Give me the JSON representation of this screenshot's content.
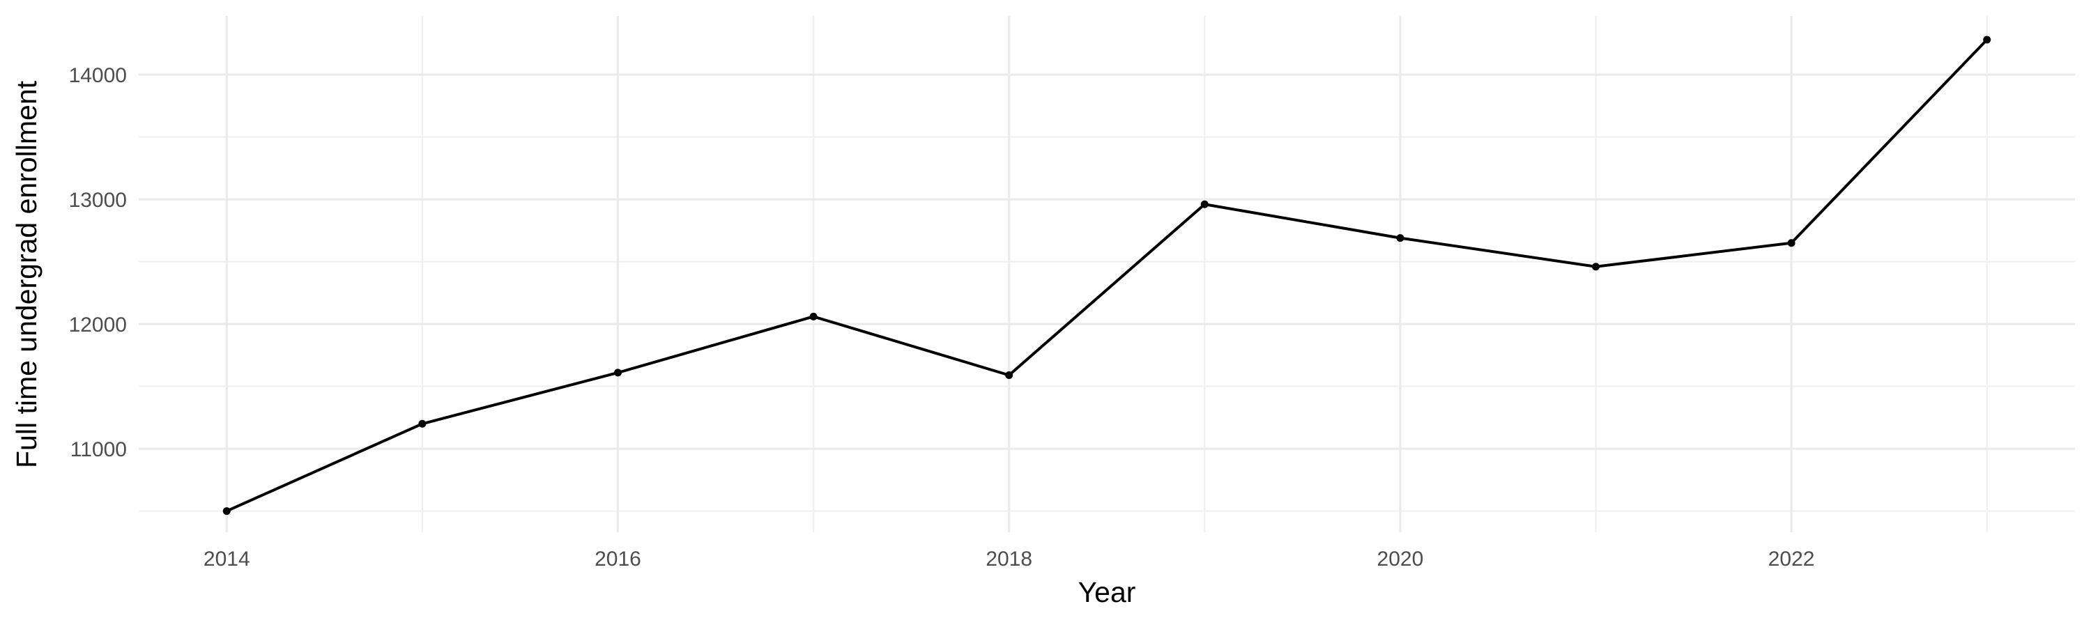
{
  "figure": {
    "background_color": "#ffffff"
  },
  "chart_data": {
    "type": "line",
    "title": "",
    "xlabel": "Year",
    "ylabel": "Full time undergrad enrollment",
    "x": [
      2014,
      2015,
      2016,
      2017,
      2018,
      2019,
      2020,
      2021,
      2022,
      2023
    ],
    "series": [
      {
        "name": "Full time undergrad enrollment",
        "values": [
          10500,
          11200,
          11610,
          12060,
          11590,
          12960,
          12690,
          12460,
          12650,
          14280
        ]
      }
    ],
    "x_major_ticks": [
      2014,
      2016,
      2018,
      2020,
      2022
    ],
    "x_minor_ticks": [
      2015,
      2017,
      2019,
      2021,
      2023
    ],
    "y_major_ticks": [
      11000,
      12000,
      13000,
      14000
    ],
    "y_minor_ticks": [
      10500,
      11500,
      12500,
      13500
    ],
    "xlim": [
      2013.55,
      2023.45
    ],
    "ylim": [
      10330,
      14470
    ],
    "grid": true,
    "legend_position": "none",
    "style": {
      "line_color": "#000000",
      "point_color": "#000000",
      "major_grid_color": "#ebebeb",
      "minor_grid_color": "#f0f0f0",
      "tick_label_color": "#4d4d4d",
      "axis_title_color": "#000000"
    }
  }
}
